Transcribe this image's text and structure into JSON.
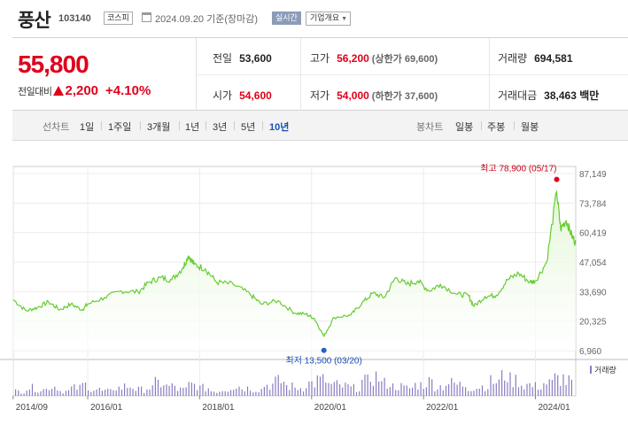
{
  "header": {
    "name": "풍산",
    "code": "103140",
    "market": "코스피",
    "date": "2024.09.20 기준(장마감)",
    "realtime": "실시간",
    "corp_info": "기업개요"
  },
  "quote": {
    "price": "55,800",
    "change_label": "전일대비",
    "change": "2,200",
    "change_pct": "+4.10%",
    "stats": {
      "prev_close": {
        "label": "전일",
        "value": "53,600"
      },
      "high": {
        "label": "고가",
        "value": "56,200",
        "sub": "(상한가 69,600)"
      },
      "volume": {
        "label": "거래량",
        "value": "694,581"
      },
      "open": {
        "label": "시가",
        "value": "54,600"
      },
      "low": {
        "label": "저가",
        "value": "54,000",
        "sub": "(하한가 37,600)"
      },
      "amount": {
        "label": "거래대금",
        "value": "38,463 백만"
      }
    }
  },
  "toolbar": {
    "line_chart_label": "선차트",
    "periods": [
      "1일",
      "1주일",
      "3개월",
      "1년",
      "3년",
      "5년",
      "10년"
    ],
    "active_period": "10년",
    "candle_label": "봉차트",
    "candle_periods": [
      "일봉",
      "주봉",
      "월봉"
    ]
  },
  "chart_data": {
    "type": "area",
    "y_ticks": [
      "87,149",
      "73,784",
      "60,419",
      "47,054",
      "33,690",
      "20,325",
      "6,960"
    ],
    "ylim": [
      6960,
      87149
    ],
    "x_ticks": [
      "2014/09",
      "2016/01",
      "2018/01",
      "2020/01",
      "2022/01",
      "2024/01"
    ],
    "xlim": [
      2014.67,
      2024.72
    ],
    "max_label": "최고 78,900 (05/17)",
    "min_label": "최저 13,500 (03/20)",
    "max_point": {
      "x": 2024.38,
      "y": 78900
    },
    "min_point": {
      "x": 2020.22,
      "y": 13500
    },
    "volume_legend": "거래량",
    "colors": {
      "line": "#66cc33",
      "fill": "#e3f6d6",
      "max_dot": "#e0001b",
      "min_dot": "#1f63c6",
      "volume": "#8b7bc2"
    },
    "series": [
      {
        "x": [
          2014.67,
          2014.9,
          2015.1,
          2015.3,
          2015.5,
          2015.7,
          2015.9,
          2016.0,
          2016.3,
          2016.6,
          2016.9,
          2017.1,
          2017.3,
          2017.5,
          2017.7,
          2017.8,
          2017.9,
          2018.1,
          2018.3,
          2018.6,
          2018.9,
          2019.1,
          2019.4,
          2019.7,
          2019.9,
          2020.05,
          2020.22,
          2020.4,
          2020.7,
          2020.9,
          2021.1,
          2021.3,
          2021.5,
          2021.7,
          2021.9,
          2022.1,
          2022.3,
          2022.6,
          2022.8,
          2022.9,
          2023.1,
          2023.3,
          2023.5,
          2023.7,
          2023.9,
          2024.0,
          2024.2,
          2024.38,
          2024.45,
          2024.55,
          2024.65,
          2024.72
        ],
        "y": [
          30000,
          25000,
          26500,
          29000,
          25500,
          28000,
          25500,
          28000,
          31000,
          34000,
          33500,
          38000,
          40000,
          39000,
          44500,
          50000,
          46000,
          44000,
          38000,
          37000,
          32500,
          28000,
          29500,
          24000,
          23500,
          21500,
          13500,
          22000,
          23000,
          28500,
          33000,
          31000,
          40000,
          37000,
          38500,
          34000,
          37000,
          32500,
          32000,
          27000,
          31500,
          32000,
          39000,
          42000,
          38000,
          38500,
          47000,
          78900,
          62000,
          66000,
          59000,
          55800
        ]
      }
    ],
    "volume": [
      3,
      5,
      4,
      6,
      3,
      5,
      7,
      4,
      3,
      5,
      6,
      4,
      5,
      8,
      6,
      4,
      7,
      5,
      3,
      4,
      6,
      5,
      4,
      7,
      9,
      6,
      5,
      8,
      10,
      7,
      6,
      5,
      9,
      12,
      8,
      6,
      5,
      7,
      9,
      6,
      8,
      7,
      5,
      6,
      9,
      14,
      10,
      7,
      6,
      8,
      11,
      9
    ]
  }
}
